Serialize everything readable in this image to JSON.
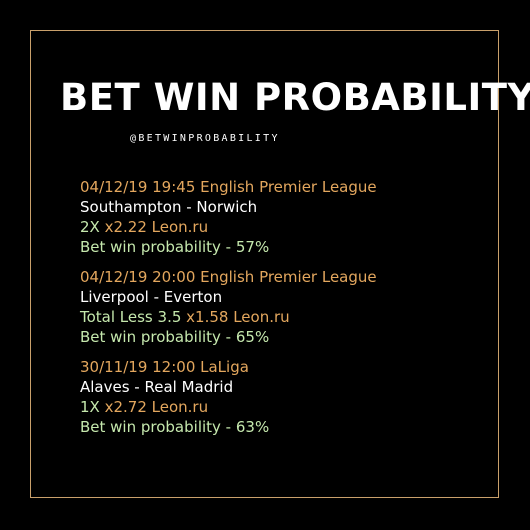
{
  "title": "BET WIN PROBABILITY",
  "handle": "@BETWINPROBABILITY",
  "colors": {
    "frame": "#c9a06b",
    "header": "#e3a75e",
    "match": "#ffffff",
    "pick": "#c5e8ad",
    "probability": "#c5e8ad"
  },
  "bets": [
    {
      "header": "04/12/19 19:45 English Premier League",
      "match": "Southampton - Norwich",
      "pick": "2X",
      "odds_bookmaker": "x2.22 Leon.ru",
      "probability": "Bet win probability - 57%"
    },
    {
      "header": "04/12/19 20:00 English Premier League",
      "match": "Liverpool - Everton",
      "pick": "Total Less 3.5",
      "odds_bookmaker": "x1.58 Leon.ru",
      "probability": "Bet win probability - 65%"
    },
    {
      "header": "30/11/19 12:00 LaLiga",
      "match": "Alaves - Real Madrid",
      "pick": "1X",
      "odds_bookmaker": "x2.72 Leon.ru",
      "probability": "Bet win probability - 63%"
    }
  ]
}
